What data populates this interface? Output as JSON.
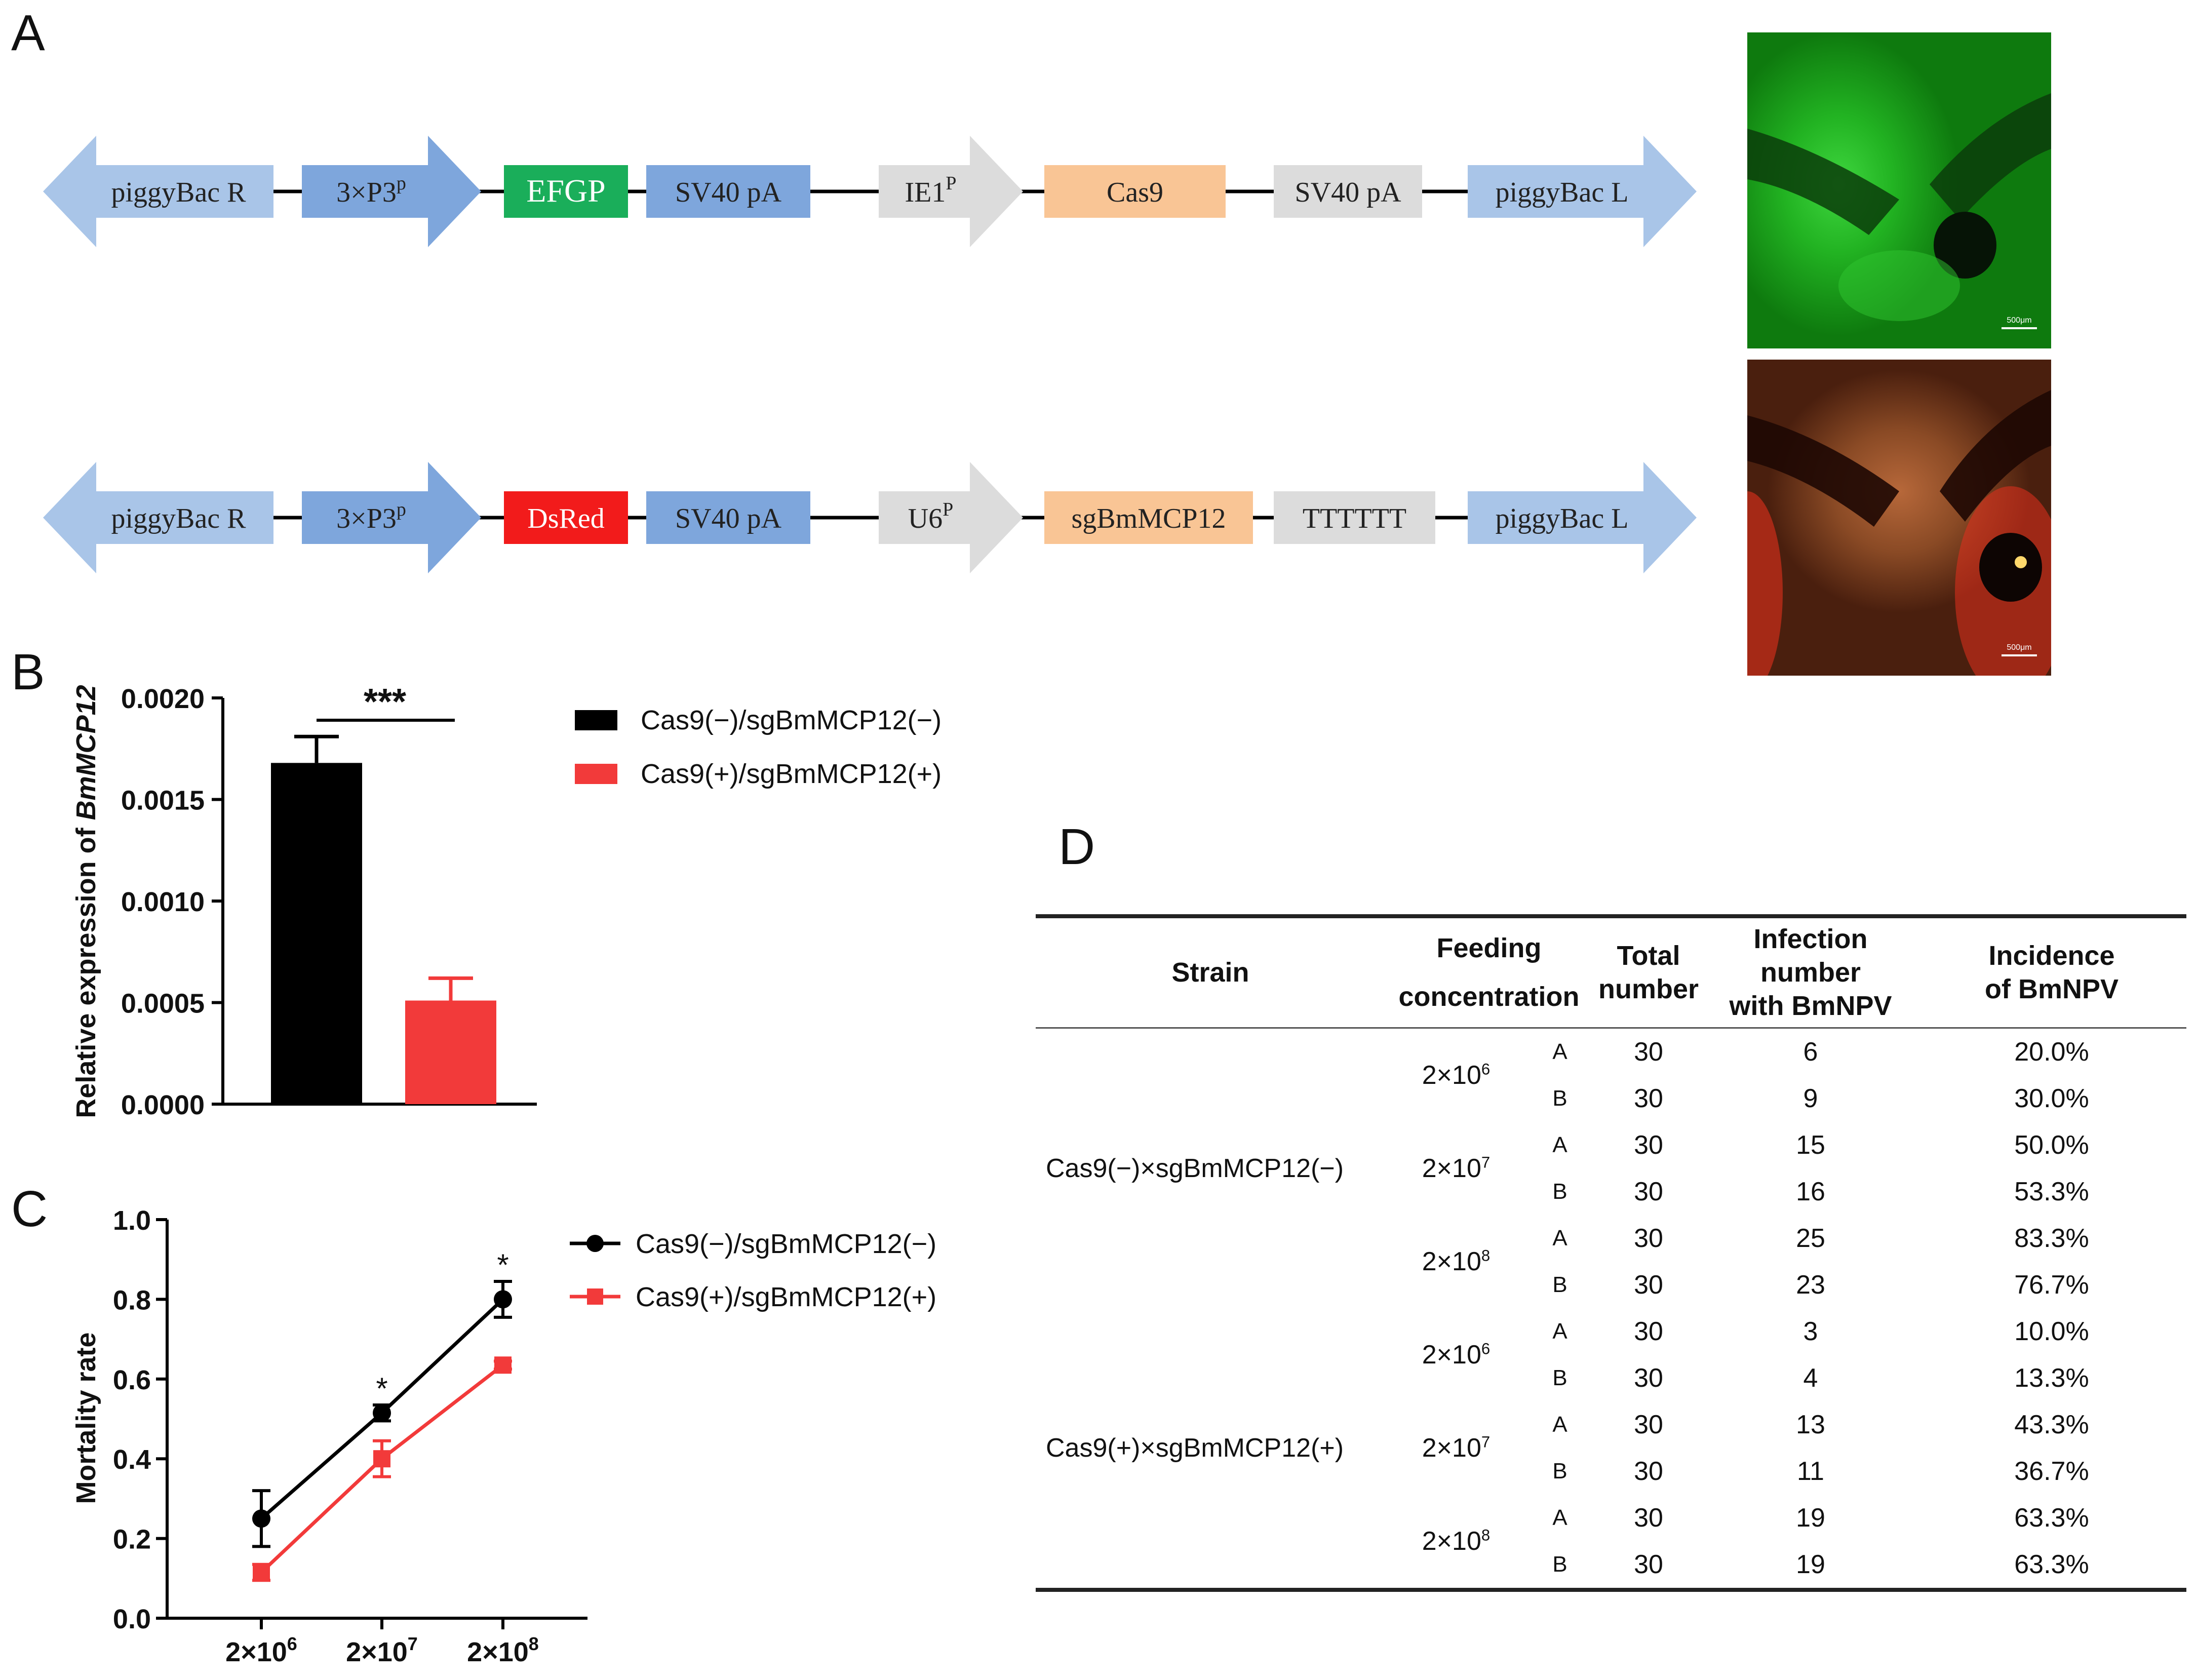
{
  "panels": {
    "a": "A",
    "b": "B",
    "c": "C",
    "d": "D"
  },
  "constructs": [
    {
      "elements": [
        {
          "label": "piggyBac R",
          "sup": "",
          "shape": "arrow-left",
          "color": "#a9c5e8"
        },
        {
          "label": "3×P3",
          "sup": "p",
          "shape": "arrow-right",
          "color": "#7ea6dc"
        },
        {
          "label": "EFGP",
          "sup": "",
          "shape": "box",
          "color": "#1aae5a",
          "text_color": "#ffffff"
        },
        {
          "label": "SV40 pA",
          "sup": "",
          "shape": "box",
          "color": "#7ea6dc"
        },
        {
          "label": "IE1",
          "sup": "P",
          "shape": "arrow-right",
          "color": "#dcdcdc"
        },
        {
          "label": "Cas9",
          "sup": "",
          "shape": "box",
          "color": "#f9c595"
        },
        {
          "label": "SV40 pA",
          "sup": "",
          "shape": "box",
          "color": "#dcdcdc"
        },
        {
          "label": "piggyBac L",
          "sup": "",
          "shape": "arrow-right",
          "color": "#a9c5e8"
        }
      ]
    },
    {
      "elements": [
        {
          "label": "piggyBac R",
          "sup": "",
          "shape": "arrow-left",
          "color": "#a9c5e8"
        },
        {
          "label": "3×P3",
          "sup": "p",
          "shape": "arrow-right",
          "color": "#7ea6dc"
        },
        {
          "label": "DsRed",
          "sup": "",
          "shape": "box",
          "color": "#f21b1b",
          "text_color": "#ffffff"
        },
        {
          "label": "SV40 pA",
          "sup": "",
          "shape": "box",
          "color": "#7ea6dc"
        },
        {
          "label": "U6",
          "sup": "P",
          "shape": "arrow-right",
          "color": "#dcdcdc"
        },
        {
          "label": "sgBmMCP12",
          "sup": "",
          "shape": "box",
          "color": "#f9c595"
        },
        {
          "label": "TTTTTT",
          "sup": "",
          "shape": "box",
          "color": "#dcdcdc"
        },
        {
          "label": "piggyBac L",
          "sup": "",
          "shape": "arrow-right",
          "color": "#a9c5e8"
        }
      ]
    }
  ],
  "photos": {
    "scale_green": "500μm",
    "scale_red": "500μm"
  },
  "chart_data": [
    {
      "type": "bar",
      "categories": [
        "Cas9(−)/sgBmMCP12(−)",
        "Cas9(+)/sgBmMCP12(+)"
      ],
      "values": [
        0.00168,
        0.00051
      ],
      "errors": [
        0.00013,
        0.00011
      ],
      "colors": [
        "#000000",
        "#f23a3a"
      ],
      "ylabel_prefix": "Relative expression of ",
      "ylabel_gene": "BmMCP12",
      "ylim": [
        0,
        0.002
      ],
      "yticks": [
        "0.0000",
        "0.0005",
        "0.0010",
        "0.0015",
        "0.0020"
      ],
      "significance": "***",
      "legend": [
        "Cas9(−)/sgBmMCP12(−)",
        "Cas9(+)/sgBmMCP12(+)"
      ]
    },
    {
      "type": "line",
      "x": [
        "2×10^6",
        "2×10^7",
        "2×10^8"
      ],
      "x_base": [
        "2×10",
        "2×10",
        "2×10"
      ],
      "x_exp": [
        "6",
        "7",
        "8"
      ],
      "series": [
        {
          "name": "Cas9(−)/sgBmMCP12(−)",
          "values": [
            0.25,
            0.515,
            0.8
          ],
          "errors": [
            0.07,
            0.02,
            0.045
          ],
          "color": "#000000",
          "marker": "circle"
        },
        {
          "name": "Cas9(+)/sgBmMCP12(+)",
          "values": [
            0.115,
            0.4,
            0.635
          ],
          "errors": [
            0.02,
            0.045,
            0.01
          ],
          "color": "#f23a3a",
          "marker": "square"
        }
      ],
      "ylabel": "Mortality rate",
      "ylim": [
        0,
        1.0
      ],
      "yticks": [
        "0.0",
        "0.2",
        "0.4",
        "0.6",
        "0.8",
        "1.0"
      ],
      "significance": [
        "",
        "*",
        "*"
      ]
    }
  ],
  "table": {
    "headers": {
      "strain": "Strain",
      "feeding1": "Feeding",
      "feeding2": "concentration",
      "total1": "Total",
      "total2": "number",
      "infection1": "Infection number",
      "infection2": "with BmNPV",
      "incidence1": "Incidence",
      "incidence2": "of BmNPV"
    },
    "groups": [
      {
        "strain": "Cas9(−)×sgBmMCP12(−)",
        "concentrations": [
          {
            "base": "2×10",
            "exp": "6",
            "rows": [
              {
                "rep": "A",
                "total": "30",
                "infected": "6",
                "incidence": "20.0%"
              },
              {
                "rep": "B",
                "total": "30",
                "infected": "9",
                "incidence": "30.0%"
              }
            ]
          },
          {
            "base": "2×10",
            "exp": "7",
            "rows": [
              {
                "rep": "A",
                "total": "30",
                "infected": "15",
                "incidence": "50.0%"
              },
              {
                "rep": "B",
                "total": "30",
                "infected": "16",
                "incidence": "53.3%"
              }
            ]
          },
          {
            "base": "2×10",
            "exp": "8",
            "rows": [
              {
                "rep": "A",
                "total": "30",
                "infected": "25",
                "incidence": "83.3%"
              },
              {
                "rep": "B",
                "total": "30",
                "infected": "23",
                "incidence": "76.7%"
              }
            ]
          }
        ]
      },
      {
        "strain": "Cas9(+)×sgBmMCP12(+)",
        "concentrations": [
          {
            "base": "2×10",
            "exp": "6",
            "rows": [
              {
                "rep": "A",
                "total": "30",
                "infected": "3",
                "incidence": "10.0%"
              },
              {
                "rep": "B",
                "total": "30",
                "infected": "4",
                "incidence": "13.3%"
              }
            ]
          },
          {
            "base": "2×10",
            "exp": "7",
            "rows": [
              {
                "rep": "A",
                "total": "30",
                "infected": "13",
                "incidence": "43.3%"
              },
              {
                "rep": "B",
                "total": "30",
                "infected": "11",
                "incidence": "36.7%"
              }
            ]
          },
          {
            "base": "2×10",
            "exp": "8",
            "rows": [
              {
                "rep": "A",
                "total": "30",
                "infected": "19",
                "incidence": "63.3%"
              },
              {
                "rep": "B",
                "total": "30",
                "infected": "19",
                "incidence": "63.3%"
              }
            ]
          }
        ]
      }
    ]
  }
}
